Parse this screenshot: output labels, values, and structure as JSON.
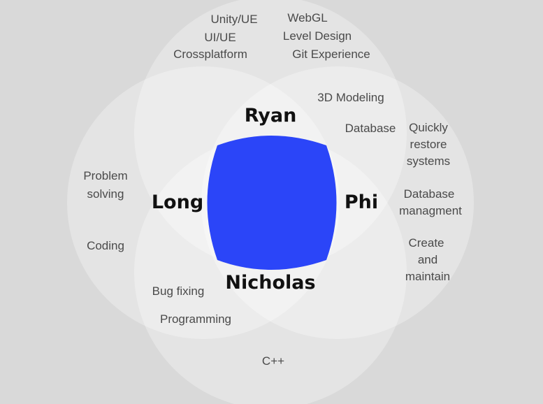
{
  "diagram": {
    "names": {
      "top": "Ryan",
      "left": "Long",
      "right": "Phi",
      "bottom": "Nicholas"
    },
    "skills": {
      "unity": "Unity/UE",
      "ui": "UI/UE",
      "crossplatform": "Crossplatform",
      "webgl": "WebGL",
      "level_design": "Level Design",
      "git": "Git Experience",
      "modeling": "3D Modeling",
      "database": "Database",
      "quickly": "Quickly",
      "restore": "restore",
      "systems": "systems",
      "db_mgmt_1": "Database",
      "db_mgmt_2": "managment",
      "create": "Create",
      "and": "and",
      "maintain": "maintain",
      "problem": "Problem",
      "solving": "solving",
      "coding": "Coding",
      "bug_fixing": "Bug fixing",
      "programming": "Programming",
      "cpp": "C++"
    },
    "colors": {
      "background": "#d9d9d9",
      "circle_fill": "#ffffff",
      "center_fill": "#2b45f8"
    }
  }
}
